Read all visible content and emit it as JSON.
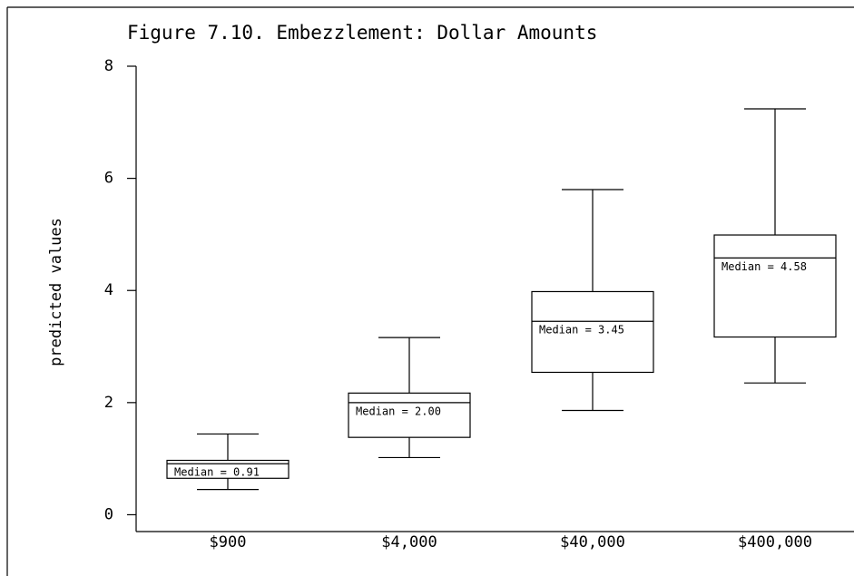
{
  "chart_data": {
    "type": "box",
    "title": "Figure 7.10. Embezzlement: Dollar Amounts",
    "y_label": "predicted values",
    "categories": [
      "$900",
      "$4,000",
      "$40,000",
      "$400,000"
    ],
    "whisker_high": [
      1.44,
      3.16,
      5.8,
      7.24
    ],
    "q3": [
      0.97,
      2.17,
      3.98,
      4.99
    ],
    "median": [
      0.91,
      2.0,
      3.45,
      4.58
    ],
    "q1": [
      0.65,
      1.38,
      2.54,
      3.17
    ],
    "whisker_low": [
      0.45,
      1.02,
      1.86,
      2.35
    ],
    "median_labels": [
      "Median = 0.91",
      "Median = 2.00",
      "Median = 3.45",
      "Median = 4.58"
    ],
    "ylim": [
      -0.3,
      8
    ],
    "yticks": [
      0,
      2,
      4,
      6,
      8
    ],
    "color": "#000000"
  }
}
